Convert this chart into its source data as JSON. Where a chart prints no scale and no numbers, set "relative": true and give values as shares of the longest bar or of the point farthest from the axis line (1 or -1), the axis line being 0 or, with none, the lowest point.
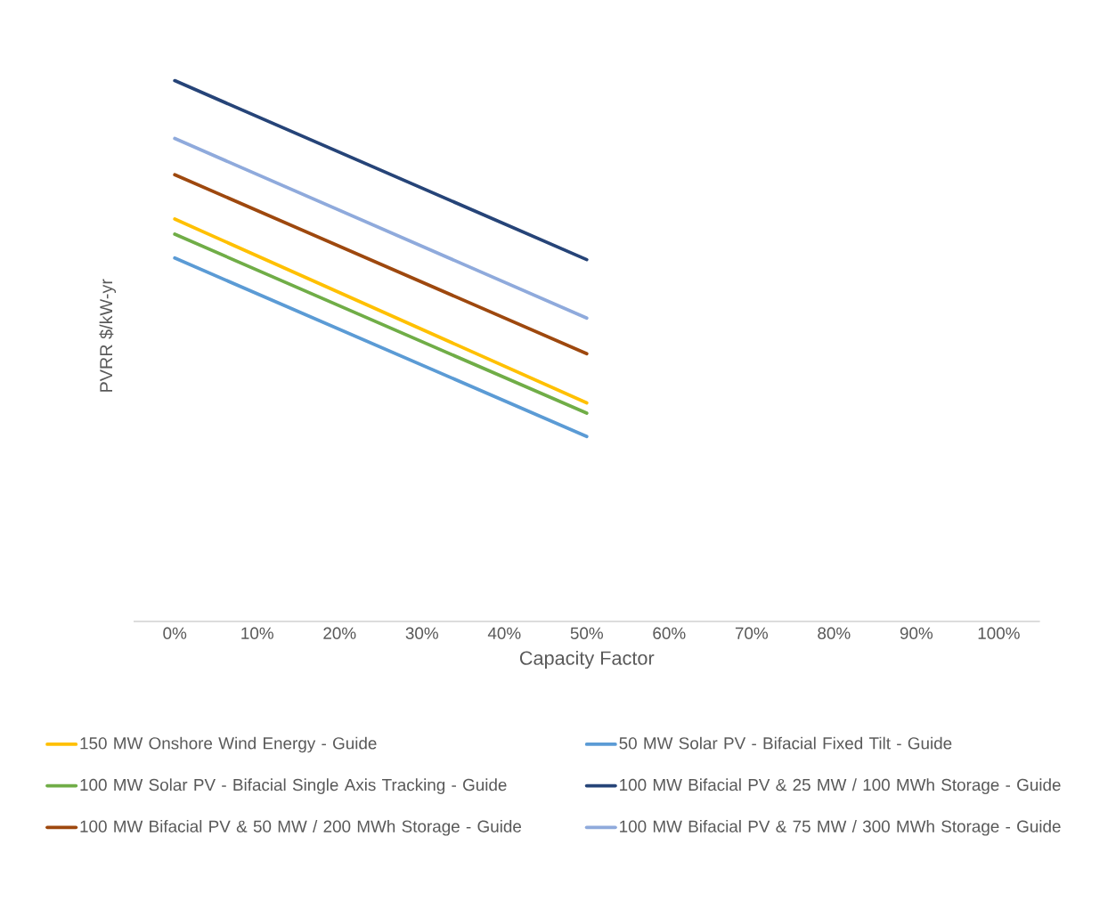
{
  "chart_data": {
    "type": "line",
    "relative": true,
    "xlabel": "Capacity Factor",
    "ylabel": "PVRR $/kW-yr",
    "xlim": [
      -0.05,
      1.05
    ],
    "xticks": [
      {
        "value": 0,
        "label": "0%"
      },
      {
        "value": 0.1,
        "label": "10%"
      },
      {
        "value": 0.2,
        "label": "20%"
      },
      {
        "value": 0.3,
        "label": "30%"
      },
      {
        "value": 0.4,
        "label": "40%"
      },
      {
        "value": 0.5,
        "label": "50%"
      },
      {
        "value": 0.6,
        "label": "60%"
      },
      {
        "value": 0.7,
        "label": "70%"
      },
      {
        "value": 0.8,
        "label": "80%"
      },
      {
        "value": 0.9,
        "label": "90%"
      },
      {
        "value": 1,
        "label": "100%"
      }
    ],
    "x": [
      0,
      0.5
    ],
    "series": [
      {
        "name": "150 MW Onshore Wind Energy - Guide",
        "color": "#ffc000",
        "values": [
          0.744,
          0.404
        ]
      },
      {
        "name": "50 MW Solar PV - Bifacial Fixed Tilt - Guide",
        "color": "#5b9bd5",
        "values": [
          0.672,
          0.342
        ]
      },
      {
        "name": "100 MW Solar PV - Bifacial Single Axis Tracking - Guide",
        "color": "#70ad47",
        "values": [
          0.716,
          0.385
        ]
      },
      {
        "name": "100 MW Bifacial PV & 25 MW / 100 MWh Storage - Guide",
        "color": "#264478",
        "values": [
          1,
          0.669
        ]
      },
      {
        "name": "100 MW Bifacial PV & 50 MW / 200 MWh Storage - Guide",
        "color": "#9e480e",
        "values": [
          0.826,
          0.495
        ]
      },
      {
        "name": "100 MW Bifacial PV & 75 MW / 300 MWh Storage - Guide",
        "color": "#8faadc",
        "values": [
          0.893,
          0.561
        ]
      }
    ],
    "legend": "bottom",
    "line_style": "solid",
    "marker": "none"
  }
}
